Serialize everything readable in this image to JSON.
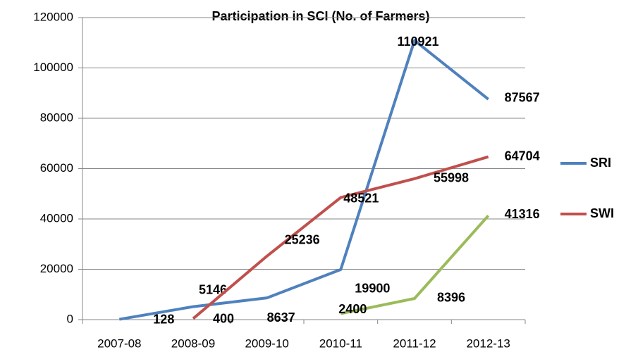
{
  "chart_data": {
    "type": "line",
    "title": "Participation in SCI (No. of Farmers)",
    "categories": [
      "2007-08",
      "2008-09",
      "2009-10",
      "2010-11",
      "2011-12",
      "2012-13"
    ],
    "series": [
      {
        "name": "SRI",
        "color": "#4f81bd",
        "values": [
          128,
          5146,
          8637,
          19900,
          110921,
          87567
        ]
      },
      {
        "name": "SWI",
        "color": "#c0504d",
        "values": [
          null,
          400,
          25236,
          48521,
          55998,
          64704
        ]
      },
      {
        "color": "#9bbb59",
        "values": [
          null,
          null,
          null,
          2400,
          8396,
          41316
        ]
      }
    ],
    "ylim": [
      0,
      120000
    ],
    "yticks": [
      0,
      20000,
      40000,
      60000,
      80000,
      100000,
      120000
    ],
    "grid": true,
    "legend": "right"
  }
}
